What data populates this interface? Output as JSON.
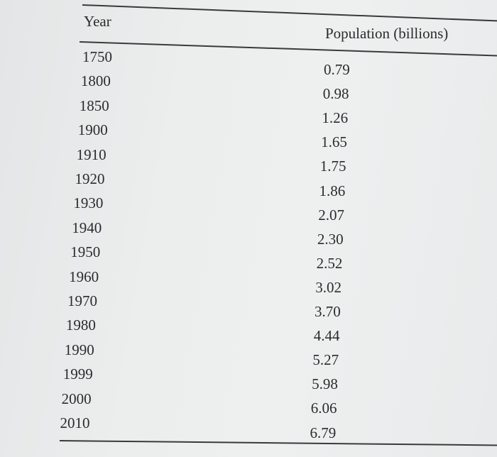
{
  "table": {
    "headers": {
      "year": "Year",
      "population": "Population (billions)"
    },
    "rows": [
      {
        "year": "1750",
        "population": "0.79"
      },
      {
        "year": "1800",
        "population": "0.98"
      },
      {
        "year": "1850",
        "population": "1.26"
      },
      {
        "year": "1900",
        "population": "1.65"
      },
      {
        "year": "1910",
        "population": "1.75"
      },
      {
        "year": "1920",
        "population": "1.86"
      },
      {
        "year": "1930",
        "population": "2.07"
      },
      {
        "year": "1940",
        "population": "2.30"
      },
      {
        "year": "1950",
        "population": "2.52"
      },
      {
        "year": "1960",
        "population": "3.02"
      },
      {
        "year": "1970",
        "population": "3.70"
      },
      {
        "year": "1980",
        "population": "4.44"
      },
      {
        "year": "1990",
        "population": "5.27"
      },
      {
        "year": "1999",
        "population": "5.98"
      },
      {
        "year": "2000",
        "population": "6.06"
      },
      {
        "year": "2010",
        "population": "6.79"
      }
    ]
  }
}
